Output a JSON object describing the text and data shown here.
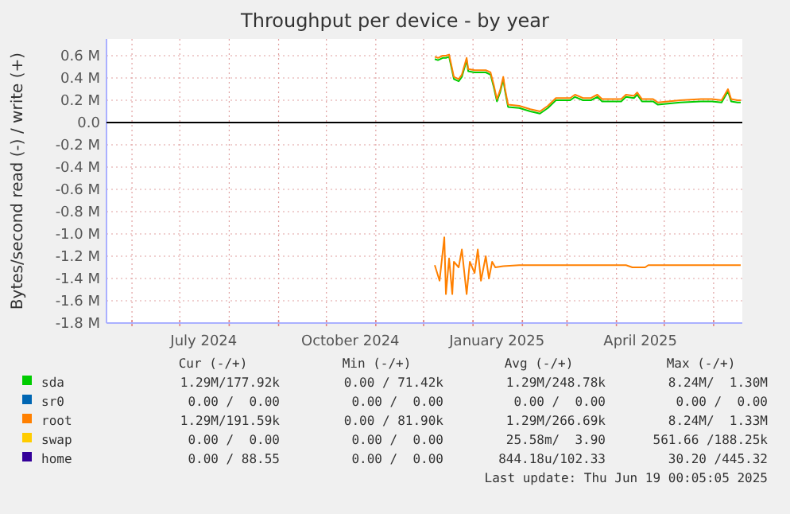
{
  "chart_data": {
    "type": "line",
    "title": "Throughput per device - by year",
    "ylabel": "Bytes/second read (-) / write (+)",
    "xlim": [
      "2024-05-16",
      "2025-06-19"
    ],
    "xticks": [
      {
        "value": "2024-06-01",
        "label": null
      },
      {
        "value": "2024-07-01",
        "label": null
      },
      {
        "value": "2024-07-16",
        "label": "July 2024"
      },
      {
        "value": "2024-08-01",
        "label": null
      },
      {
        "value": "2024-09-01",
        "label": null
      },
      {
        "value": "2024-10-01",
        "label": null
      },
      {
        "value": "2024-10-16",
        "label": "October 2024"
      },
      {
        "value": "2024-11-01",
        "label": null
      },
      {
        "value": "2024-12-01",
        "label": null
      },
      {
        "value": "2025-01-01",
        "label": null
      },
      {
        "value": "2025-01-16",
        "label": "January 2025"
      },
      {
        "value": "2025-02-01",
        "label": null
      },
      {
        "value": "2025-03-01",
        "label": null
      },
      {
        "value": "2025-04-01",
        "label": null
      },
      {
        "value": "2025-04-16",
        "label": "April 2025"
      },
      {
        "value": "2025-05-01",
        "label": null
      },
      {
        "value": "2025-06-01",
        "label": null
      }
    ],
    "ylim": [
      -1.8,
      0.75
    ],
    "yticks": [
      {
        "value": 0.6,
        "label": "0.6 M"
      },
      {
        "value": 0.4,
        "label": "0.4 M"
      },
      {
        "value": 0.2,
        "label": "0.2 M"
      },
      {
        "value": 0,
        "label": "0.0"
      },
      {
        "value": -0.2,
        "label": "-0.2 M"
      },
      {
        "value": -0.4,
        "label": "-0.4 M"
      },
      {
        "value": -0.6,
        "label": "-0.6 M"
      },
      {
        "value": -0.8,
        "label": "-0.8 M"
      },
      {
        "value": -1.0,
        "label": "-1.0 M"
      },
      {
        "value": -1.2,
        "label": "-1.2 M"
      },
      {
        "value": -1.4,
        "label": "-1.4 M"
      },
      {
        "value": -1.6,
        "label": "-1.6 M"
      },
      {
        "value": -1.8,
        "label": "-1.8 M"
      }
    ],
    "ref_lines": [
      {
        "axis": "y",
        "value": 0,
        "color": "#000000"
      }
    ],
    "grid": true,
    "legend": "bottom",
    "line_style": "solid",
    "series": [
      {
        "name": "sda",
        "color": "#00cc00",
        "x": [
          "2024-12-08",
          "2024-12-10",
          "2024-12-13",
          "2024-12-15",
          "2024-12-17",
          "2024-12-20",
          "2024-12-23",
          "2024-12-25",
          "2024-12-28",
          "2024-12-29",
          "2025-01-02",
          "2025-01-09",
          "2025-01-12",
          "2025-01-14",
          "2025-01-16",
          "2025-01-18",
          "2025-01-20",
          "2025-01-21",
          "2025-01-23",
          "2025-01-30",
          "2025-02-06",
          "2025-02-12",
          "2025-02-17",
          "2025-02-22",
          "2025-03-03",
          "2025-03-06",
          "2025-03-11",
          "2025-03-16",
          "2025-03-20",
          "2025-03-23",
          "2025-04-04",
          "2025-04-07",
          "2025-04-12",
          "2025-04-14",
          "2025-04-17",
          "2025-04-24",
          "2025-04-27",
          "2025-05-11",
          "2025-05-24",
          "2025-05-31",
          "2025-06-06",
          "2025-06-10",
          "2025-06-12",
          "2025-06-16",
          "2025-06-18"
        ],
        "values": [
          0.57,
          0.56,
          0.58,
          0.58,
          0.59,
          0.39,
          0.37,
          0.41,
          0.56,
          0.46,
          0.45,
          0.45,
          0.43,
          0.32,
          0.19,
          0.27,
          0.39,
          0.29,
          0.14,
          0.13,
          0.1,
          0.08,
          0.13,
          0.2,
          0.2,
          0.23,
          0.2,
          0.2,
          0.23,
          0.19,
          0.19,
          0.23,
          0.22,
          0.25,
          0.19,
          0.19,
          0.16,
          0.18,
          0.19,
          0.19,
          0.18,
          0.28,
          0.19,
          0.18,
          0.18
        ]
      },
      {
        "name": "sr0",
        "color": "#0066b3",
        "values": [
          null
        ]
      },
      {
        "name": "root",
        "color": "#ff8000",
        "x": [
          "2024-12-08",
          "2024-12-10",
          "2024-12-13",
          "2024-12-15",
          "2024-12-17",
          "2024-12-20",
          "2024-12-23",
          "2024-12-25",
          "2024-12-28",
          "2024-12-29",
          "2025-01-02",
          "2025-01-09",
          "2025-01-12",
          "2025-01-14",
          "2025-01-16",
          "2025-01-18",
          "2025-01-20",
          "2025-01-21",
          "2025-01-23",
          "2025-01-30",
          "2025-02-06",
          "2025-02-12",
          "2025-02-17",
          "2025-02-22",
          "2025-03-03",
          "2025-03-06",
          "2025-03-11",
          "2025-03-16",
          "2025-03-20",
          "2025-03-23",
          "2025-04-04",
          "2025-04-07",
          "2025-04-12",
          "2025-04-14",
          "2025-04-17",
          "2025-04-24",
          "2025-04-27",
          "2025-05-11",
          "2025-05-24",
          "2025-05-31",
          "2025-06-06",
          "2025-06-10",
          "2025-06-12",
          "2025-06-16",
          "2025-06-18"
        ],
        "values": [
          0.59,
          0.58,
          0.6,
          0.6,
          0.61,
          0.41,
          0.39,
          0.43,
          0.58,
          0.48,
          0.47,
          0.47,
          0.45,
          0.34,
          0.21,
          0.29,
          0.41,
          0.31,
          0.16,
          0.15,
          0.12,
          0.1,
          0.15,
          0.22,
          0.22,
          0.25,
          0.22,
          0.22,
          0.25,
          0.21,
          0.21,
          0.25,
          0.24,
          0.27,
          0.21,
          0.21,
          0.18,
          0.2,
          0.21,
          0.21,
          0.2,
          0.3,
          0.21,
          0.2,
          0.2
        ]
      },
      {
        "color": "#ff8000",
        "x": [
          "2024-12-08",
          "2024-12-11",
          "2024-12-14",
          "2024-12-15",
          "2024-12-17",
          "2024-12-19",
          "2024-12-20",
          "2024-12-23",
          "2024-12-25",
          "2024-12-28",
          "2024-12-30",
          "2025-01-02",
          "2025-01-04",
          "2025-01-06",
          "2025-01-09",
          "2025-01-11",
          "2025-01-13",
          "2025-01-15",
          "2025-01-20",
          "2025-01-30",
          "2025-04-07",
          "2025-04-11",
          "2025-04-19",
          "2025-04-21",
          "2025-06-18"
        ],
        "values": [
          -1.28,
          -1.42,
          -1.03,
          -1.54,
          -1.22,
          -1.54,
          -1.25,
          -1.3,
          -1.14,
          -1.54,
          -1.25,
          -1.35,
          -1.14,
          -1.42,
          -1.2,
          -1.4,
          -1.25,
          -1.3,
          -1.29,
          -1.28,
          -1.28,
          -1.3,
          -1.3,
          -1.28,
          -1.28
        ]
      },
      {
        "name": "swap",
        "color": "#ffcc00",
        "values": [
          null
        ]
      },
      {
        "name": "home",
        "color": "#330099",
        "values": [
          null
        ]
      }
    ],
    "annotations": [
      "Cur (-/+)",
      "Min (-/+)",
      "Avg (-/+)",
      "Max (-/+)",
      "1.29M/177.92k",
      "0.00 / 71.42k",
      "1.29M/248.78k",
      "8.24M/  1.30M",
      "0.00 /  0.00",
      "0.00 /  0.00",
      "0.00 /  0.00",
      "0.00 /  0.00",
      "1.29M/191.59k",
      "0.00 / 81.90k",
      "1.29M/266.69k",
      "8.24M/  1.33M",
      "0.00 /  0.00",
      "0.00 /  0.00",
      "25.58m/  3.90",
      "561.66 /188.25k",
      "0.00 / 88.55",
      "0.00 /  0.00",
      "844.18u/102.33",
      "30.20 /445.32",
      "Last update: Thu Jun 19 00:05:05 2025"
    ]
  }
}
